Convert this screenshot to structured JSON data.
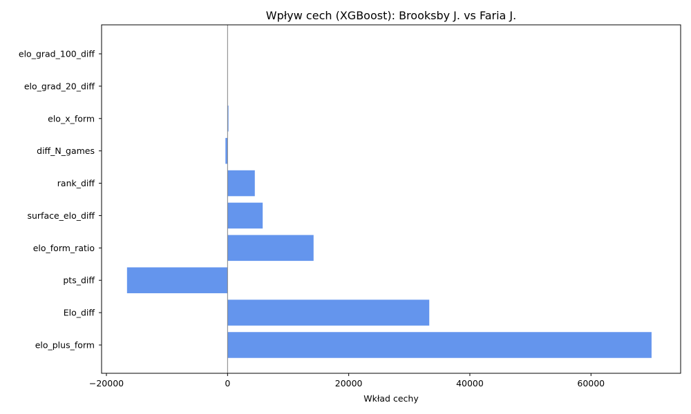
{
  "chart_data": {
    "type": "bar",
    "orientation": "horizontal",
    "title": "Wpływ cech (XGBoost): Brooksby J. vs Faria J.",
    "xlabel": "Wkład cechy",
    "ylabel": "",
    "categories": [
      "elo_plus_form",
      "Elo_diff",
      "pts_diff",
      "elo_form_ratio",
      "surface_elo_diff",
      "rank_diff",
      "diff_N_games",
      "elo_x_form",
      "elo_grad_20_diff",
      "elo_grad_100_diff"
    ],
    "values": [
      70000,
      33300,
      -16600,
      14200,
      5800,
      4500,
      -350,
      150,
      0,
      0
    ],
    "xlim": [
      -20800,
      74800
    ],
    "xticks": [
      -20000,
      0,
      20000,
      40000,
      60000
    ],
    "xtick_labels": [
      "−20000",
      "0",
      "20000",
      "40000",
      "60000"
    ],
    "bar_color": "#6495ED",
    "zero_line_color": "#808080",
    "grid": false,
    "legend": "none"
  }
}
